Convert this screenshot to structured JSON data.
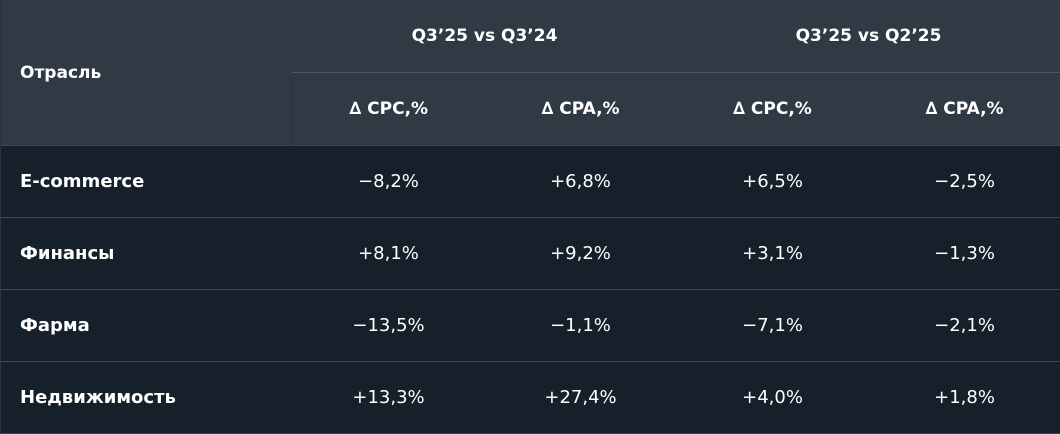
{
  "header": {
    "industry_label": "Отрасль",
    "groups": [
      "Q3’25 vs Q3’24",
      "Q3’25 vs Q2’25"
    ],
    "subcolumns": [
      "∆ CPC,%",
      "∆ CPA,%",
      "∆ CPC,%",
      "∆ CPA,%"
    ]
  },
  "rows": [
    {
      "name": "E-commerce",
      "values": [
        "−8,2%",
        "+6,8%",
        "+6,5%",
        "−2,5%"
      ]
    },
    {
      "name": "Финансы",
      "values": [
        "+8,1%",
        "+9,2%",
        "+3,1%",
        "−1,3%"
      ]
    },
    {
      "name": "Фарма",
      "values": [
        "−13,5%",
        "−1,1%",
        "−7,1%",
        "−2,1%"
      ]
    },
    {
      "name": "Недвижимость",
      "values": [
        "+13,3%",
        "+27,4%",
        "+4,0%",
        "+1,8%"
      ]
    }
  ]
}
